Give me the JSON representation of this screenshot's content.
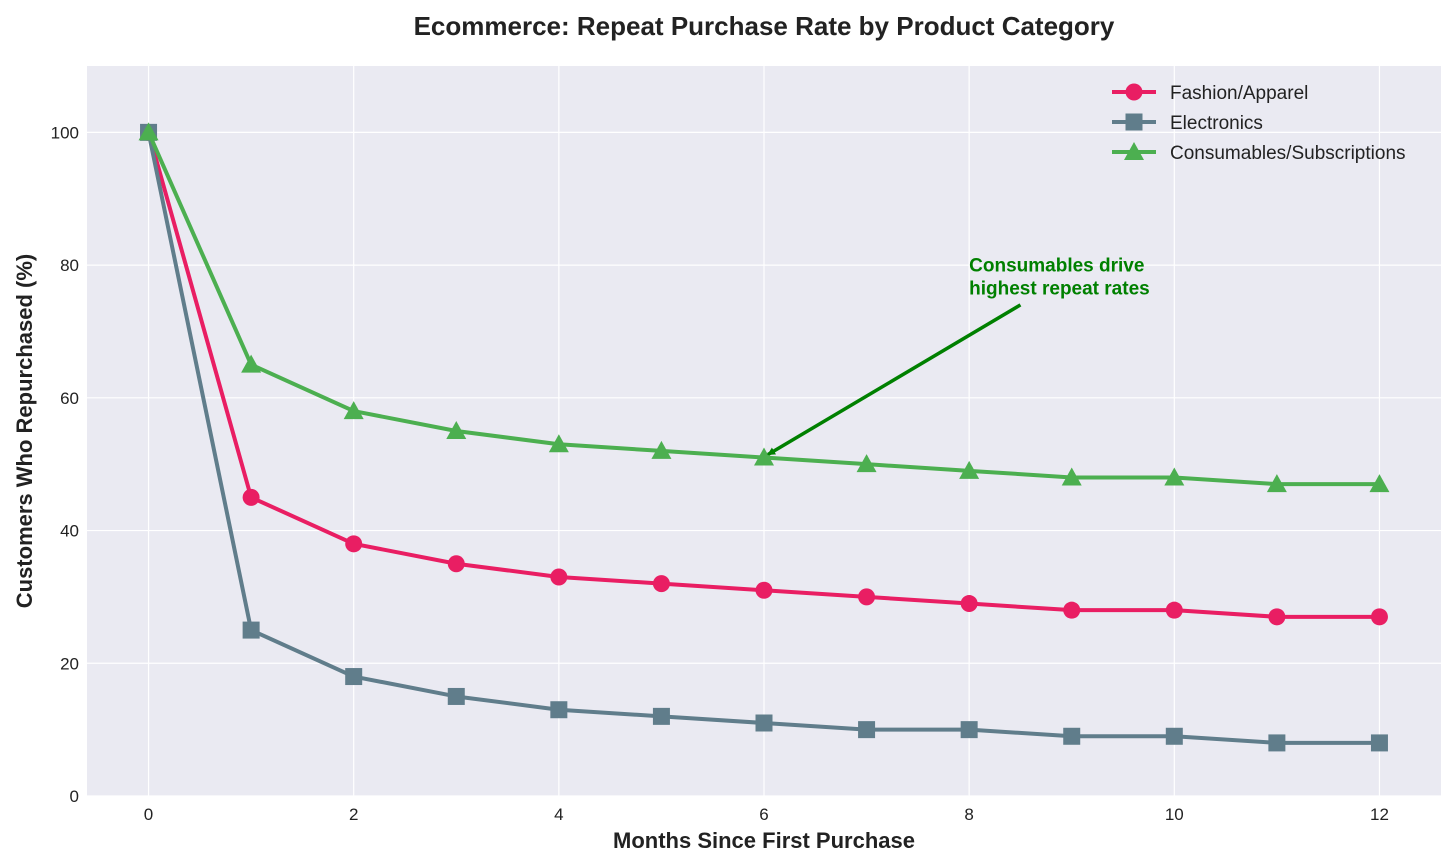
{
  "chart_data": {
    "type": "line",
    "title": "Ecommerce: Repeat Purchase Rate by Product Category",
    "xlabel": "Months Since First Purchase",
    "ylabel": "Customers Who Repurchased (%)",
    "x": [
      0,
      1,
      2,
      3,
      4,
      5,
      6,
      7,
      8,
      9,
      10,
      11,
      12
    ],
    "xlim": [
      -0.6,
      12.6
    ],
    "ylim": [
      0,
      110
    ],
    "xticks": [
      0,
      2,
      4,
      6,
      8,
      10,
      12
    ],
    "yticks": [
      0,
      20,
      40,
      60,
      80,
      100
    ],
    "grid": true,
    "legend_position": "top-right",
    "series": [
      {
        "name": "Fashion/Apparel",
        "marker": "circle",
        "color": "#e91e63",
        "values": [
          100,
          45,
          38,
          35,
          33,
          32,
          31,
          30,
          29,
          28,
          28,
          27,
          27
        ]
      },
      {
        "name": "Electronics",
        "marker": "square",
        "color": "#607d8b",
        "values": [
          100,
          25,
          18,
          15,
          13,
          12,
          11,
          10,
          10,
          9,
          9,
          8,
          8
        ]
      },
      {
        "name": "Consumables/Subscriptions",
        "marker": "triangle",
        "color": "#4caf50",
        "values": [
          100,
          65,
          58,
          55,
          53,
          52,
          51,
          50,
          49,
          48,
          48,
          47,
          47
        ]
      }
    ],
    "annotation": {
      "lines": [
        "Consumables drive",
        "highest repeat rates"
      ],
      "color": "#008000",
      "text_at": {
        "x": 8,
        "y": 79
      },
      "arrow_from": {
        "x": 8.5,
        "y": 74
      },
      "arrow_to": {
        "x": 6,
        "y": 51
      }
    }
  }
}
